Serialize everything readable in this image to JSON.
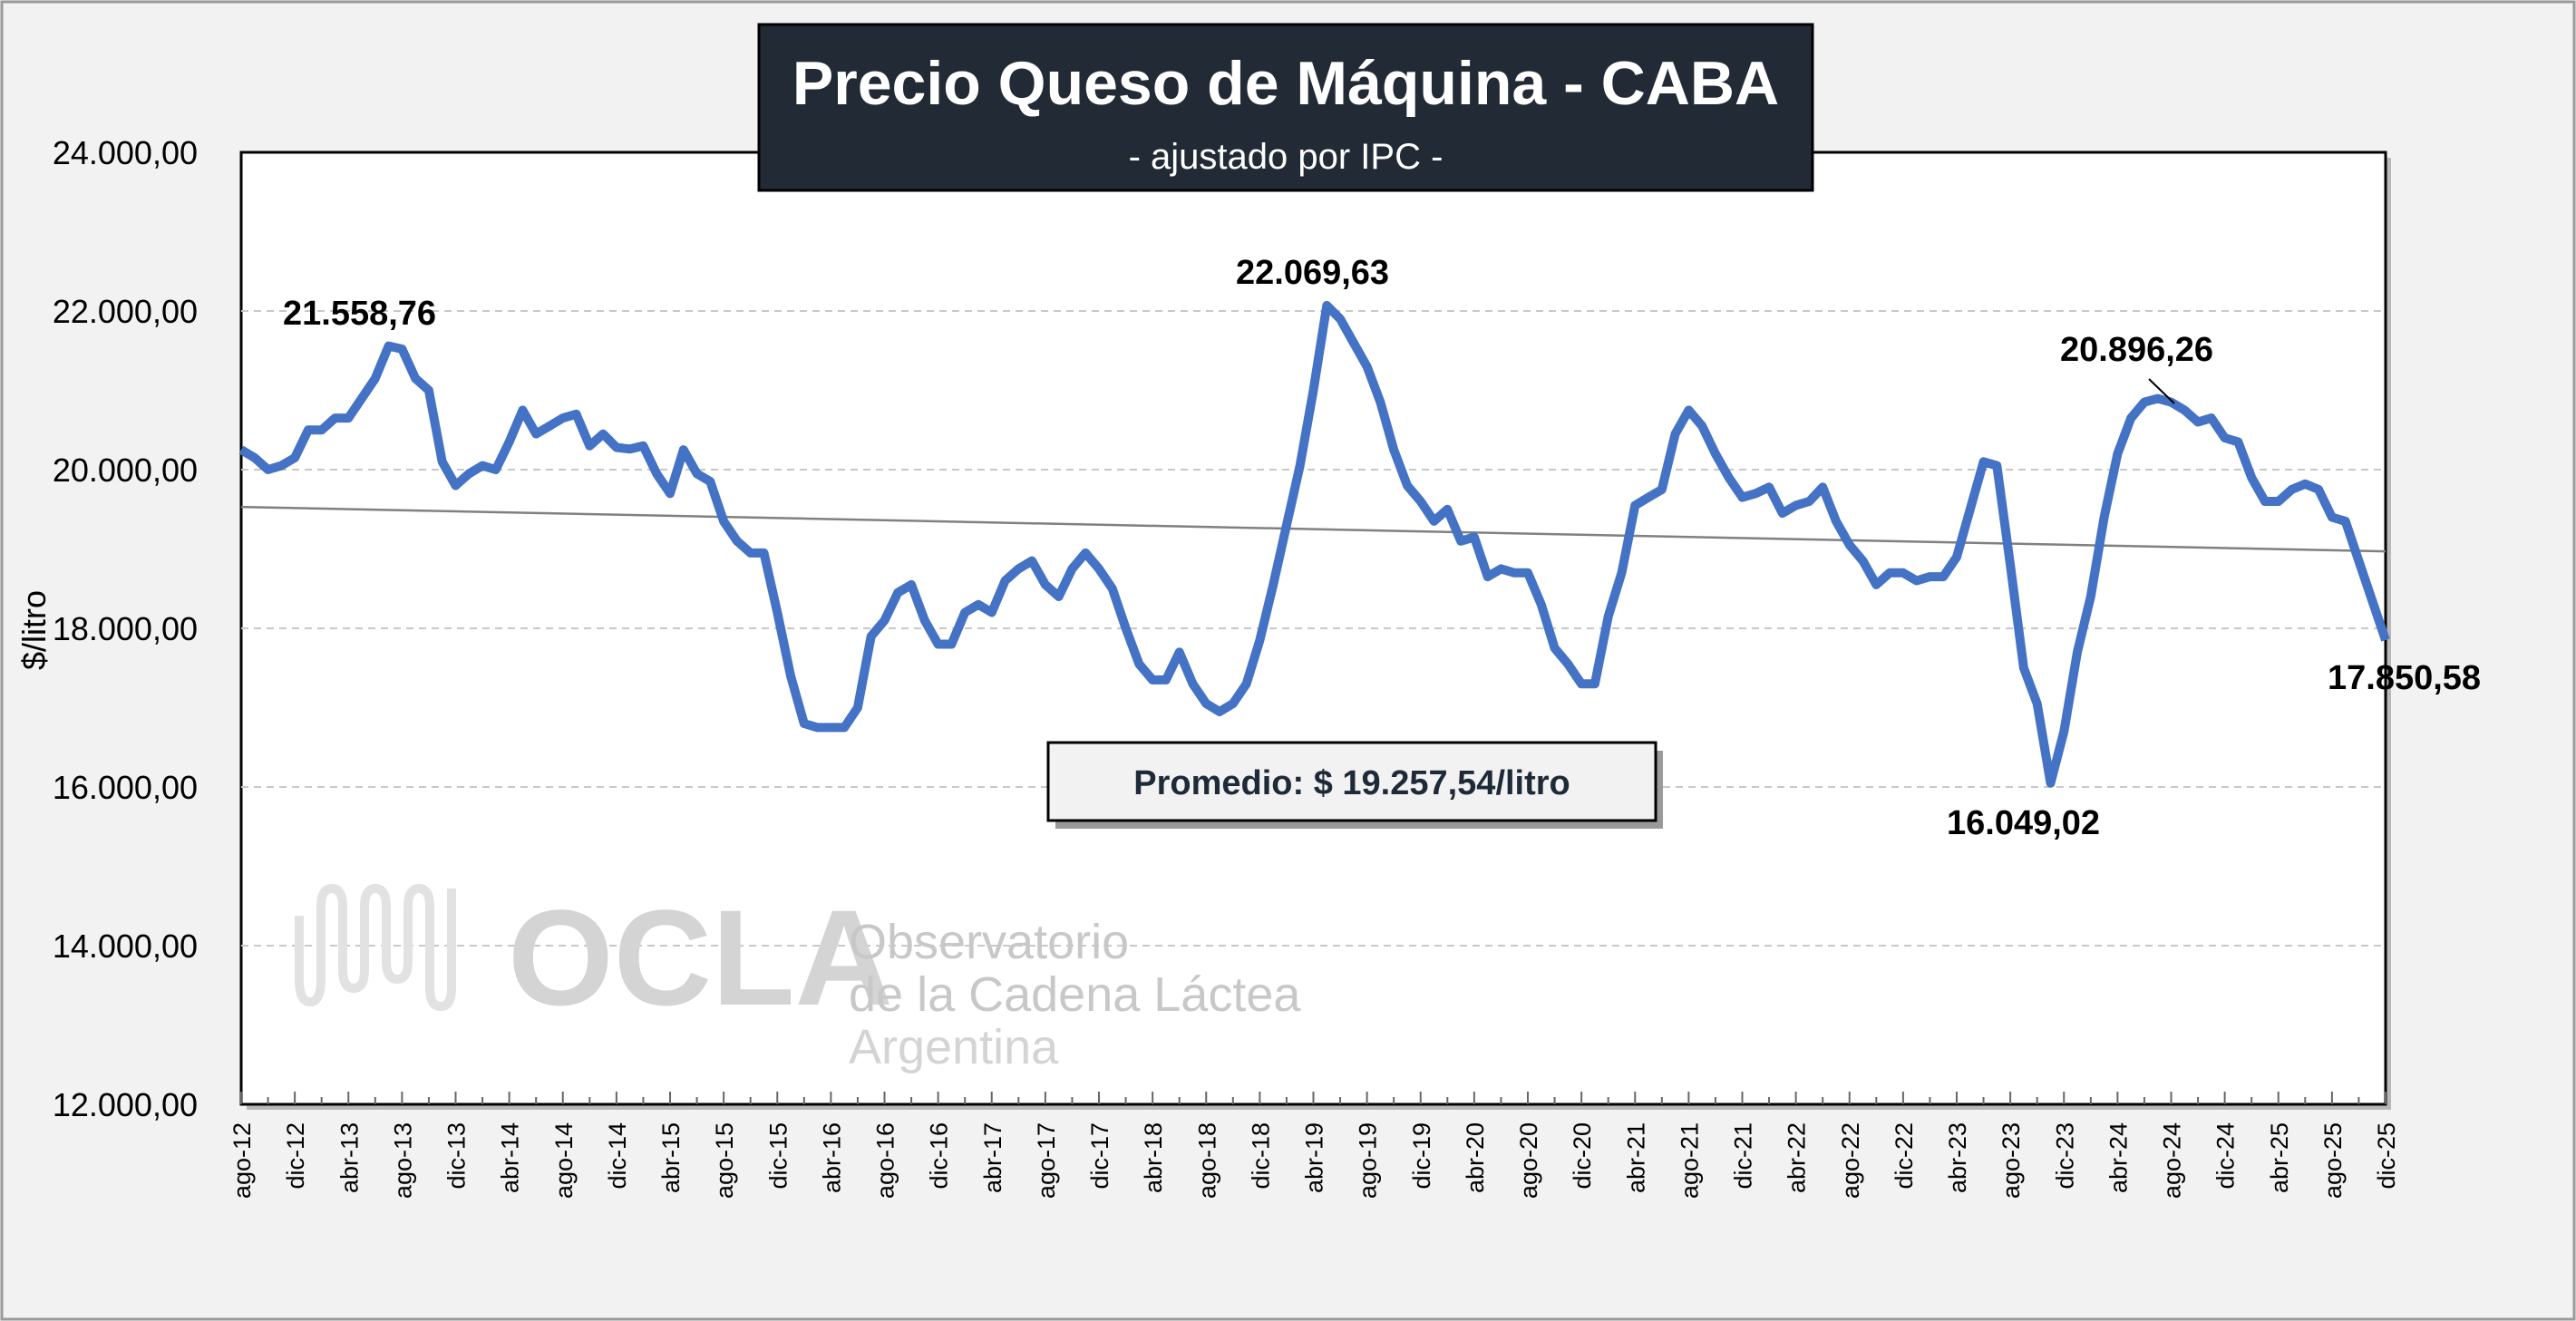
{
  "chart_data": {
    "type": "line",
    "title": "Precio Queso de Máquina - CABA",
    "subtitle": "- ajustado por IPC -",
    "ylabel": "$/litro",
    "xlabel": "",
    "ylim": [
      12000,
      24000
    ],
    "yticks": [
      "12.000,00",
      "14.000,00",
      "16.000,00",
      "18.000,00",
      "20.000,00",
      "22.000,00",
      "24.000,00"
    ],
    "ytick_values": [
      12000,
      14000,
      16000,
      18000,
      20000,
      22000,
      24000
    ],
    "grid": "horizontal dashed",
    "x_start": "ago-12",
    "x_end": "dic-25",
    "x_frequency": "monthly",
    "xticks": [
      "ago-12",
      "dic-12",
      "abr-13",
      "ago-13",
      "dic-13",
      "abr-14",
      "ago-14",
      "dic-14",
      "abr-15",
      "ago-15",
      "dic-15",
      "abr-16",
      "ago-16",
      "dic-16",
      "abr-17",
      "ago-17",
      "dic-17",
      "abr-18",
      "ago-18",
      "dic-18",
      "abr-19",
      "ago-19",
      "dic-19",
      "abr-20",
      "ago-20",
      "dic-20",
      "abr-21",
      "ago-21",
      "dic-21",
      "abr-22",
      "ago-22",
      "dic-22",
      "abr-23",
      "ago-23",
      "dic-23",
      "abr-24",
      "ago-24",
      "dic-24",
      "abr-25",
      "ago-25",
      "dic-25"
    ],
    "series": [
      {
        "name": "Precio Queso de Máquina",
        "color": "#4472c4",
        "values": [
          20250,
          20150,
          20000,
          20050,
          20150,
          20500,
          20500,
          20650,
          20650,
          20900,
          21150,
          21559,
          21520,
          21150,
          21000,
          20100,
          19800,
          19950,
          20050,
          20000,
          20350,
          20750,
          20450,
          20550,
          20650,
          20700,
          20300,
          20450,
          20280,
          20260,
          20300,
          19950,
          19700,
          20250,
          19950,
          19850,
          19350,
          19100,
          18950,
          18950,
          18200,
          17400,
          16800,
          16750,
          16750,
          16750,
          17000,
          17900,
          18100,
          18450,
          18550,
          18100,
          17800,
          17800,
          18200,
          18300,
          18200,
          18600,
          18750,
          18850,
          18550,
          18400,
          18750,
          18950,
          18750,
          18500,
          18000,
          17550,
          17350,
          17350,
          17700,
          17300,
          17050,
          16950,
          17050,
          17300,
          17850,
          18550,
          19300,
          20050,
          21000,
          22070,
          21900,
          21600,
          21300,
          20850,
          20250,
          19800,
          19600,
          19350,
          19500,
          19100,
          19150,
          18650,
          18750,
          18700,
          18700,
          18300,
          17750,
          17550,
          17300,
          17300,
          18150,
          18700,
          19550,
          19650,
          19750,
          20450,
          20750,
          20550,
          20200,
          19900,
          19650,
          19700,
          19780,
          19450,
          19550,
          19600,
          19780,
          19350,
          19050,
          18850,
          18550,
          18700,
          18700,
          18600,
          18650,
          18650,
          18900,
          19500,
          20100,
          20050,
          18800,
          17500,
          17050,
          16049,
          16700,
          17700,
          18400,
          19400,
          20200,
          20650,
          20850,
          20896,
          20850,
          20750,
          20600,
          20650,
          20400,
          20350,
          19900,
          19600,
          19600,
          19750,
          19820,
          19750,
          19400,
          19350,
          18850,
          18350,
          17851
        ]
      },
      {
        "name": "Tendencia",
        "color": "#808080",
        "type": "linear-trend",
        "start": 19530,
        "end": 18970
      }
    ],
    "annotations": {
      "max_2013": "21.558,76",
      "max_2019": "22.069,63",
      "max_2024": "20.896,26",
      "min_2023": "16.049,02",
      "last": "17.850,58",
      "average": "Promedio: $ 19.257,54/litro"
    }
  },
  "logo": {
    "name": "OCLA",
    "line1": "Observatorio",
    "line2": "de la Cadena Láctea",
    "line3": "Argentina"
  }
}
